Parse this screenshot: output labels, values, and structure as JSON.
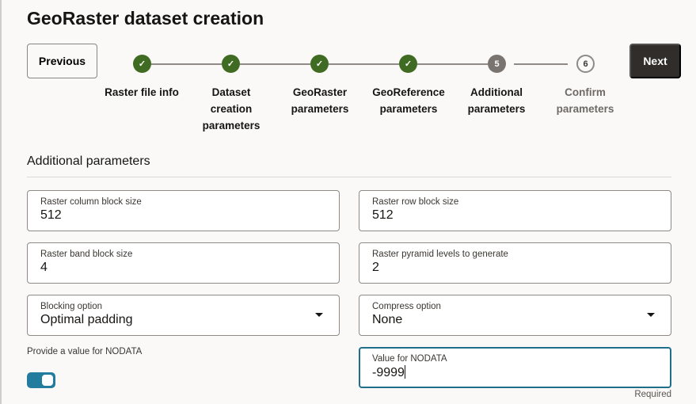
{
  "title": "GeoRaster dataset creation",
  "buttons": {
    "previous": "Previous",
    "next": "Next"
  },
  "steps": [
    {
      "num": "1",
      "label": "Raster file info",
      "state": "done"
    },
    {
      "num": "2",
      "label": "Dataset creation parameters",
      "state": "done"
    },
    {
      "num": "3",
      "label": "GeoRaster parameters",
      "state": "done"
    },
    {
      "num": "4",
      "label": "GeoReference parameters",
      "state": "done"
    },
    {
      "num": "5",
      "label": "Additional parameters",
      "state": "current"
    },
    {
      "num": "6",
      "label": "Confirm parameters",
      "state": "todo"
    }
  ],
  "section_title": "Additional parameters",
  "fields": {
    "col_block": {
      "label": "Raster column block size",
      "value": "512"
    },
    "row_block": {
      "label": "Raster row block size",
      "value": "512"
    },
    "band_block": {
      "label": "Raster band block size",
      "value": "4"
    },
    "pyramid": {
      "label": "Raster pyramid levels to generate",
      "value": "2"
    },
    "blocking": {
      "label": "Blocking option",
      "value": "Optimal padding"
    },
    "compress": {
      "label": "Compress option",
      "value": "None"
    },
    "nodata": {
      "label": "Value for NODATA",
      "value": "-9999",
      "hint": "Required"
    }
  },
  "toggle": {
    "label": "Provide a value for NODATA",
    "on": true
  },
  "colors": {
    "done": "#3f6b22",
    "current": "#7a7470",
    "accent": "#227c9d"
  }
}
